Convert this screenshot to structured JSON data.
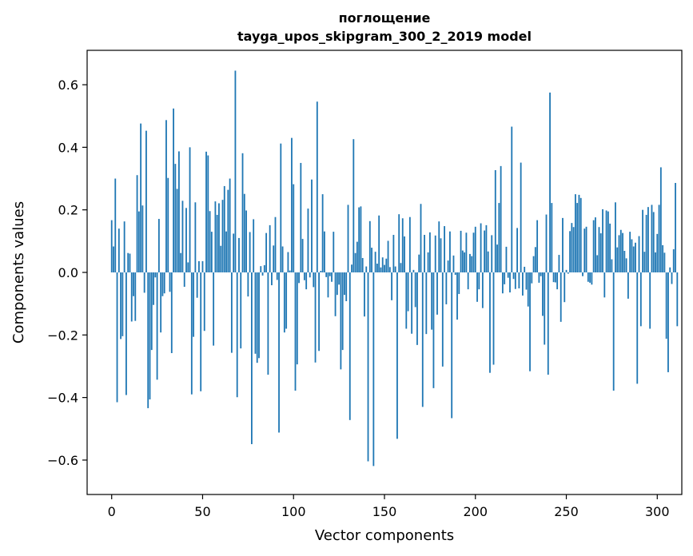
{
  "chart_data": {
    "type": "bar",
    "title_line1": "поглощение",
    "title_line2": "tayga_upos_skipgram_300_2_2019 model",
    "xlabel": "Vector components",
    "ylabel": "Components values",
    "xlim": [
      -13.5,
      313.5
    ],
    "ylim": [
      -0.71,
      0.71
    ],
    "x_ticks": [
      0,
      50,
      100,
      150,
      200,
      250,
      300
    ],
    "x_tick_labels": [
      "0",
      "50",
      "100",
      "150",
      "200",
      "250",
      "300"
    ],
    "y_ticks": [
      -0.6,
      -0.4,
      -0.2,
      0.0,
      0.2,
      0.4,
      0.6
    ],
    "y_tick_labels": [
      "−0.6",
      "−0.4",
      "−0.2",
      "0.0",
      "0.2",
      "0.4",
      "0.6"
    ],
    "grid": false,
    "bar_color": "#1f77b4",
    "values": [
      0.167,
      0.083,
      0.3,
      -0.415,
      0.14,
      -0.213,
      -0.204,
      0.163,
      -0.392,
      0.062,
      0.06,
      -0.157,
      -0.076,
      -0.155,
      0.311,
      0.195,
      0.476,
      0.214,
      -0.065,
      0.453,
      -0.434,
      -0.406,
      -0.248,
      -0.104,
      -0.016,
      -0.343,
      0.171,
      -0.192,
      -0.076,
      -0.067,
      0.487,
      0.302,
      -0.062,
      -0.258,
      0.524,
      0.347,
      0.267,
      0.387,
      0.062,
      0.229,
      -0.046,
      0.206,
      0.032,
      0.4,
      -0.39,
      -0.206,
      0.224,
      -0.081,
      0.036,
      -0.38,
      0.036,
      -0.187,
      0.386,
      0.374,
      0.196,
      0.13,
      -0.234,
      0.227,
      0.184,
      0.221,
      0.085,
      0.232,
      0.276,
      0.131,
      0.264,
      0.3,
      -0.257,
      0.124,
      0.645,
      -0.399,
      0.11,
      -0.243,
      0.381,
      0.251,
      0.198,
      -0.077,
      0.129,
      -0.549,
      0.17,
      -0.26,
      -0.289,
      -0.274,
      0.02,
      -0.01,
      0.023,
      0.126,
      -0.327,
      0.151,
      -0.041,
      0.086,
      0.177,
      -0.024,
      -0.512,
      0.412,
      0.083,
      -0.192,
      -0.18,
      0.065,
      0.006,
      0.43,
      0.282,
      -0.378,
      -0.294,
      -0.034,
      0.35,
      0.107,
      -0.025,
      -0.054,
      0.204,
      -0.016,
      0.297,
      -0.047,
      -0.288,
      0.546,
      -0.251,
      0.005,
      0.25,
      0.131,
      -0.015,
      -0.08,
      -0.012,
      -0.03,
      0.13,
      -0.14,
      -0.072,
      -0.039,
      -0.31,
      -0.248,
      -0.072,
      -0.092,
      0.216,
      -0.472,
      0.025,
      0.426,
      0.062,
      0.098,
      0.208,
      0.211,
      0.046,
      -0.141,
      0.019,
      -0.604,
      0.164,
      0.079,
      -0.619,
      0.066,
      0.028,
      0.182,
      0.016,
      0.048,
      0.024,
      0.044,
      0.101,
      0.017,
      -0.089,
      0.12,
      0.019,
      -0.532,
      0.186,
      0.03,
      0.173,
      0.115,
      -0.18,
      -0.124,
      0.177,
      -0.196,
      0.008,
      -0.111,
      -0.232,
      0.057,
      0.219,
      -0.43,
      0.12,
      -0.197,
      0.064,
      0.128,
      -0.183,
      -0.37,
      0.118,
      -0.135,
      0.163,
      0.109,
      -0.301,
      0.148,
      -0.102,
      0.038,
      0.131,
      -0.466,
      0.054,
      -0.008,
      -0.151,
      -0.069,
      0.133,
      0.07,
      0.064,
      0.127,
      -0.054,
      0.059,
      0.052,
      0.127,
      0.146,
      -0.094,
      -0.054,
      0.157,
      -0.114,
      0.134,
      0.151,
      0.067,
      -0.321,
      0.119,
      -0.295,
      0.327,
      0.089,
      0.222,
      0.34,
      -0.067,
      -0.038,
      0.082,
      -0.017,
      -0.064,
      0.466,
      -0.021,
      -0.053,
      0.142,
      -0.051,
      0.351,
      -0.074,
      0.018,
      -0.055,
      -0.109,
      -0.316,
      -0.035,
      0.052,
      0.081,
      0.167,
      -0.033,
      -0.012,
      -0.139,
      -0.231,
      0.185,
      -0.327,
      0.575,
      0.222,
      -0.031,
      -0.032,
      -0.054,
      0.056,
      -0.158,
      0.174,
      -0.095,
      0.008,
      -0.004,
      0.132,
      0.158,
      0.145,
      0.25,
      0.222,
      0.248,
      0.238,
      -0.012,
      0.14,
      0.146,
      -0.03,
      -0.033,
      -0.039,
      0.167,
      0.176,
      0.055,
      0.145,
      0.125,
      0.202,
      -0.08,
      0.198,
      0.195,
      0.156,
      0.042,
      -0.378,
      0.224,
      0.08,
      0.119,
      0.136,
      0.126,
      0.069,
      0.045,
      -0.084,
      0.13,
      0.106,
      0.083,
      0.095,
      -0.356,
      0.116,
      -0.172,
      0.2,
      0.066,
      0.184,
      0.209,
      -0.18,
      0.216,
      0.193,
      0.064,
      0.123,
      0.216,
      0.336,
      0.087,
      0.063,
      -0.212,
      -0.319,
      0.016,
      -0.037,
      0.074,
      0.286,
      -0.172
    ]
  }
}
